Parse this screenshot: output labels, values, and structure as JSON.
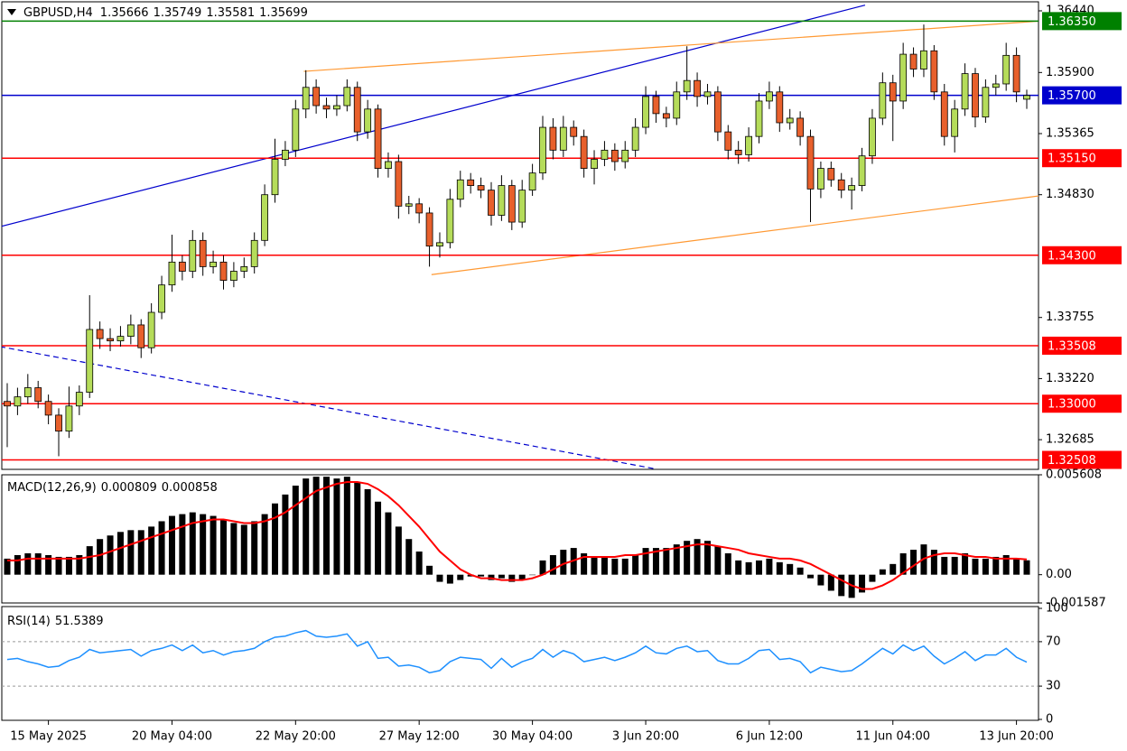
{
  "chart_data": [
    {
      "type": "candlestick",
      "title": "GBPUSD,H4",
      "up_color": "#b5dc5a",
      "down_color": "#e8602c",
      "ylim": [
        1.32425,
        1.36519
      ],
      "yticks": [
        {
          "value": 1.3644,
          "label": "1.36440"
        },
        {
          "value": 1.359,
          "label": "1.35900"
        },
        1.35365,
        {
          "value": 1.3483,
          "label": "1.34830"
        },
        1.33755,
        {
          "value": 1.3322,
          "label": "1.33220"
        },
        1.32685
      ],
      "price_levels": [
        {
          "value": 1.3635,
          "label": "1.36350",
          "color": "#008000"
        },
        {
          "value": 1.357,
          "label": "1.35700",
          "color": "#0000cd"
        },
        {
          "value": 1.3515,
          "label": "1.35150",
          "color": "#ff0000"
        },
        {
          "value": 1.343,
          "label": "1.34300",
          "color": "#ff0000"
        },
        {
          "value": 1.33508,
          "label": "1.33508",
          "color": "#ff0000"
        },
        {
          "value": 1.33,
          "label": "1.33000",
          "color": "#ff0000"
        },
        {
          "value": 1.32508,
          "label": "1.32508",
          "color": "#ff0000"
        }
      ],
      "trendlines": [
        {
          "color": "#0000cd",
          "dashed": false,
          "points": [
            [
              -0.7,
              1.3455
            ],
            [
              83.3,
              1.3649
            ]
          ]
        },
        {
          "color": "#ff9933",
          "dashed": false,
          "points": [
            [
              28.8,
              1.3591
            ],
            [
              100.2,
              1.3635
            ]
          ]
        },
        {
          "color": "#ff9933",
          "dashed": false,
          "points": [
            [
              41.2,
              1.3413
            ],
            [
              100.2,
              1.3482
            ]
          ]
        },
        {
          "color": "#0000cd",
          "dashed": true,
          "points": [
            [
              -0.7,
              1.335
            ],
            [
              62.9,
              1.3243
            ]
          ]
        }
      ],
      "categories": [
        null,
        null,
        null,
        null,
        "15 May 2025",
        null,
        null,
        null,
        null,
        null,
        null,
        null,
        null,
        null,
        null,
        null,
        "20 May 04:00",
        null,
        null,
        null,
        null,
        null,
        null,
        null,
        null,
        null,
        null,
        null,
        "22 May 20:00",
        null,
        null,
        null,
        null,
        null,
        null,
        null,
        null,
        null,
        null,
        null,
        "27 May 12:00",
        null,
        null,
        null,
        null,
        null,
        null,
        null,
        null,
        null,
        null,
        "30 May 04:00",
        null,
        null,
        null,
        null,
        null,
        null,
        null,
        null,
        null,
        null,
        "3 Jun 20:00",
        null,
        null,
        null,
        null,
        null,
        null,
        null,
        null,
        null,
        null,
        null,
        "6 Jun 12:00",
        null,
        null,
        null,
        null,
        null,
        null,
        null,
        null,
        null,
        null,
        null,
        "11 Jun 04:00",
        null,
        null,
        null,
        null,
        null,
        null,
        null,
        null,
        null,
        null,
        null,
        "13 Jun 20:00",
        null
      ],
      "candles": [
        [
          1.3302,
          1.3318,
          1.3262,
          1.3298
        ],
        [
          1.3298,
          1.3314,
          1.329,
          1.3306
        ],
        [
          1.3306,
          1.3326,
          1.33,
          1.3314
        ],
        [
          1.3314,
          1.332,
          1.3296,
          1.3302
        ],
        [
          1.3302,
          1.3308,
          1.3282,
          1.329
        ],
        [
          1.329,
          1.3296,
          1.3254,
          1.3276
        ],
        [
          1.3276,
          1.3315,
          1.327,
          1.3298
        ],
        [
          1.3298,
          1.3316,
          1.329,
          1.331
        ],
        [
          1.331,
          1.3395,
          1.3305,
          1.3365
        ],
        [
          1.3365,
          1.3372,
          1.3348,
          1.3357
        ],
        [
          1.3357,
          1.3366,
          1.3346,
          1.3355
        ],
        [
          1.3355,
          1.3368,
          1.335,
          1.3359
        ],
        [
          1.3359,
          1.3378,
          1.3352,
          1.3369
        ],
        [
          1.3369,
          1.3374,
          1.334,
          1.3349
        ],
        [
          1.3349,
          1.3388,
          1.3344,
          1.338
        ],
        [
          1.338,
          1.3412,
          1.3374,
          1.3404
        ],
        [
          1.3404,
          1.3448,
          1.3398,
          1.3424
        ],
        [
          1.3424,
          1.343,
          1.3408,
          1.3416
        ],
        [
          1.3416,
          1.3452,
          1.341,
          1.3443
        ],
        [
          1.3443,
          1.345,
          1.3412,
          1.342
        ],
        [
          1.342,
          1.3434,
          1.3414,
          1.3424
        ],
        [
          1.3424,
          1.343,
          1.34,
          1.3408
        ],
        [
          1.3408,
          1.3424,
          1.3402,
          1.3416
        ],
        [
          1.3416,
          1.3428,
          1.341,
          1.342
        ],
        [
          1.342,
          1.345,
          1.3414,
          1.3443
        ],
        [
          1.3443,
          1.3492,
          1.3438,
          1.3483
        ],
        [
          1.3483,
          1.3532,
          1.3476,
          1.3514
        ],
        [
          1.3514,
          1.353,
          1.3508,
          1.3522
        ],
        [
          1.3522,
          1.3566,
          1.3516,
          1.3558
        ],
        [
          1.3558,
          1.3592,
          1.355,
          1.3577
        ],
        [
          1.3577,
          1.3584,
          1.3554,
          1.3561
        ],
        [
          1.3561,
          1.3568,
          1.355,
          1.3558
        ],
        [
          1.3558,
          1.357,
          1.3552,
          1.3561
        ],
        [
          1.3561,
          1.3584,
          1.3556,
          1.3577
        ],
        [
          1.3577,
          1.3582,
          1.353,
          1.3538
        ],
        [
          1.3538,
          1.3566,
          1.3532,
          1.3558
        ],
        [
          1.3558,
          1.3562,
          1.3498,
          1.3506
        ],
        [
          1.3506,
          1.352,
          1.3498,
          1.3512
        ],
        [
          1.3512,
          1.3518,
          1.3462,
          1.3473
        ],
        [
          1.3473,
          1.3482,
          1.3466,
          1.3475
        ],
        [
          1.3475,
          1.348,
          1.3458,
          1.3467
        ],
        [
          1.3467,
          1.3472,
          1.342,
          1.3438
        ],
        [
          1.3438,
          1.345,
          1.3428,
          1.3441
        ],
        [
          1.3441,
          1.3488,
          1.3436,
          1.3479
        ],
        [
          1.3479,
          1.3504,
          1.3472,
          1.3496
        ],
        [
          1.3496,
          1.3502,
          1.3484,
          1.3491
        ],
        [
          1.3491,
          1.3498,
          1.348,
          1.3487
        ],
        [
          1.3487,
          1.3494,
          1.3456,
          1.3465
        ],
        [
          1.3465,
          1.35,
          1.346,
          1.3491
        ],
        [
          1.3491,
          1.3496,
          1.3452,
          1.3459
        ],
        [
          1.3459,
          1.3496,
          1.3454,
          1.3487
        ],
        [
          1.3487,
          1.351,
          1.3482,
          1.3502
        ],
        [
          1.3502,
          1.3552,
          1.3496,
          1.3542
        ],
        [
          1.3542,
          1.355,
          1.3514,
          1.3522
        ],
        [
          1.3522,
          1.3552,
          1.3516,
          1.3542
        ],
        [
          1.3542,
          1.3548,
          1.3526,
          1.3534
        ],
        [
          1.3534,
          1.354,
          1.3498,
          1.3506
        ],
        [
          1.3506,
          1.3522,
          1.3492,
          1.3514
        ],
        [
          1.3514,
          1.353,
          1.3508,
          1.3522
        ],
        [
          1.3522,
          1.3528,
          1.3504,
          1.3512
        ],
        [
          1.3512,
          1.353,
          1.3506,
          1.3522
        ],
        [
          1.3522,
          1.355,
          1.3516,
          1.3542
        ],
        [
          1.3542,
          1.3578,
          1.3536,
          1.3569
        ],
        [
          1.3569,
          1.3574,
          1.3546,
          1.3554
        ],
        [
          1.3554,
          1.356,
          1.3542,
          1.355
        ],
        [
          1.355,
          1.3582,
          1.3544,
          1.3573
        ],
        [
          1.3573,
          1.3613,
          1.3566,
          1.3583
        ],
        [
          1.3583,
          1.359,
          1.356,
          1.3569
        ],
        [
          1.3569,
          1.358,
          1.3562,
          1.3573
        ],
        [
          1.3573,
          1.3578,
          1.353,
          1.3538
        ],
        [
          1.3538,
          1.3544,
          1.3514,
          1.3522
        ],
        [
          1.3522,
          1.353,
          1.351,
          1.3518
        ],
        [
          1.3518,
          1.3542,
          1.3512,
          1.3534
        ],
        [
          1.3534,
          1.3572,
          1.3528,
          1.3565
        ],
        [
          1.3565,
          1.3582,
          1.3558,
          1.3573
        ],
        [
          1.3573,
          1.3578,
          1.3538,
          1.3546
        ],
        [
          1.3546,
          1.3558,
          1.354,
          1.355
        ],
        [
          1.355,
          1.3556,
          1.3526,
          1.3534
        ],
        [
          1.3534,
          1.354,
          1.3459,
          1.3488
        ],
        [
          1.3488,
          1.3512,
          1.348,
          1.3506
        ],
        [
          1.3506,
          1.3512,
          1.349,
          1.3496
        ],
        [
          1.3496,
          1.3502,
          1.348,
          1.3487
        ],
        [
          1.3487,
          1.3498,
          1.347,
          1.3491
        ],
        [
          1.3491,
          1.3524,
          1.3486,
          1.3517
        ],
        [
          1.3517,
          1.3558,
          1.351,
          1.355
        ],
        [
          1.355,
          1.359,
          1.3544,
          1.3581
        ],
        [
          1.3581,
          1.3588,
          1.353,
          1.3565
        ],
        [
          1.3565,
          1.3616,
          1.3558,
          1.3606
        ],
        [
          1.3606,
          1.3612,
          1.3586,
          1.3593
        ],
        [
          1.3593,
          1.3632,
          1.3586,
          1.3609
        ],
        [
          1.3609,
          1.3614,
          1.3566,
          1.3573
        ],
        [
          1.3573,
          1.358,
          1.3526,
          1.3534
        ],
        [
          1.3534,
          1.3566,
          1.352,
          1.3558
        ],
        [
          1.3558,
          1.3598,
          1.3552,
          1.3589
        ],
        [
          1.3589,
          1.3594,
          1.3542,
          1.3551
        ],
        [
          1.3551,
          1.3584,
          1.3546,
          1.3577
        ],
        [
          1.3577,
          1.3588,
          1.357,
          1.358
        ],
        [
          1.358,
          1.3616,
          1.3574,
          1.3605
        ],
        [
          1.3605,
          1.3612,
          1.3564,
          1.3573
        ],
        [
          1.35666,
          1.35749,
          1.35581,
          1.35699
        ]
      ]
    },
    {
      "type": "macd",
      "title": "MACD(12,26,9)",
      "ylim": [
        -0.001587,
        0.005608
      ],
      "yticks": [
        0.005608,
        {
          "value": 0,
          "label": "0.00"
        },
        -0.001587
      ],
      "series": [
        {
          "kind": "bar",
          "color": "#000000",
          "values": [
            0.0009,
            0.0011,
            0.0012,
            0.0012,
            0.0011,
            0.001,
            0.001,
            0.0011,
            0.0016,
            0.002,
            0.0022,
            0.0024,
            0.0025,
            0.0025,
            0.0027,
            0.003,
            0.0033,
            0.0034,
            0.0035,
            0.0034,
            0.0033,
            0.0031,
            0.0029,
            0.0028,
            0.003,
            0.0034,
            0.004,
            0.0045,
            0.005,
            0.0054,
            0.0055,
            0.0055,
            0.0054,
            0.0055,
            0.0052,
            0.0048,
            0.0041,
            0.0035,
            0.0027,
            0.002,
            0.0013,
            0.0005,
            -0.0004,
            -0.0005,
            -0.0003,
            -0.0001,
            -0.0001,
            -0.0003,
            -0.0002,
            -0.0004,
            -0.0003,
            0,
            0.0008,
            0.0011,
            0.0014,
            0.0015,
            0.0012,
            0.001,
            0.001,
            0.0009,
            0.0009,
            0.0011,
            0.0015,
            0.0015,
            0.0015,
            0.0017,
            0.0019,
            0.002,
            0.0019,
            0.0016,
            0.0012,
            0.0008,
            0.0007,
            0.0008,
            0.0009,
            0.0007,
            0.0006,
            0.0004,
            -0.0002,
            -0.0006,
            -0.0009,
            -0.0012,
            -0.0013,
            -0.001,
            -0.0004,
            0.0003,
            0.0006,
            0.0012,
            0.0014,
            0.0017,
            0.0014,
            0.001,
            0.001,
            0.0012,
            0.0009,
            0.0009,
            0.001,
            0.0011,
            0.0009,
            0.000809
          ]
        },
        {
          "kind": "line",
          "color": "#ff0000",
          "values": [
            0.0008,
            0.0008,
            0.0009,
            0.0009,
            0.0009,
            0.0009,
            0.0009,
            0.0009,
            0.001,
            0.0011,
            0.0013,
            0.0015,
            0.0017,
            0.0019,
            0.0021,
            0.0023,
            0.0025,
            0.0027,
            0.0029,
            0.003,
            0.0031,
            0.0031,
            0.003,
            0.0029,
            0.0029,
            0.003,
            0.0032,
            0.0035,
            0.0039,
            0.0043,
            0.0047,
            0.0049,
            0.0051,
            0.0052,
            0.0052,
            0.0051,
            0.0048,
            0.0044,
            0.0039,
            0.0033,
            0.0027,
            0.002,
            0.0013,
            0.0008,
            0.0003,
            0,
            -0.0002,
            -0.0002,
            -0.0003,
            -0.0003,
            -0.0003,
            -0.0002,
            0,
            0.0003,
            0.0006,
            0.0008,
            0.001,
            0.001,
            0.001,
            0.001,
            0.0011,
            0.0011,
            0.0012,
            0.0013,
            0.0014,
            0.0015,
            0.0016,
            0.0017,
            0.0017,
            0.0016,
            0.0015,
            0.0014,
            0.0012,
            0.0011,
            0.001,
            0.0009,
            0.0009,
            0.0008,
            0.0006,
            0.0003,
            0,
            -0.0003,
            -0.0006,
            -0.0008,
            -0.0008,
            -0.0006,
            -0.0003,
            0.0001,
            0.0005,
            0.0009,
            0.0011,
            0.0012,
            0.0012,
            0.0011,
            0.001,
            0.001,
            0.0009,
            0.0009,
            0.0009,
            0.000858
          ]
        }
      ]
    },
    {
      "type": "rsi",
      "title": "RSI(14)",
      "color": "#1e90ff",
      "ylim": [
        0,
        100
      ],
      "yticks": [
        100,
        70,
        30,
        0
      ],
      "values": [
        54,
        55,
        52,
        50,
        47,
        48,
        53,
        56,
        63,
        60,
        61,
        62,
        63,
        57,
        62,
        64,
        67,
        62,
        67,
        60,
        62,
        58,
        61,
        62,
        64,
        70,
        74,
        75,
        78,
        80,
        75,
        74,
        75,
        77,
        66,
        70,
        55,
        56,
        48,
        49,
        47,
        42,
        44,
        52,
        56,
        55,
        54,
        46,
        55,
        47,
        52,
        55,
        63,
        56,
        62,
        59,
        52,
        54,
        56,
        53,
        56,
        60,
        66,
        60,
        59,
        64,
        66,
        61,
        62,
        53,
        50,
        50,
        55,
        62,
        63,
        54,
        55,
        52,
        42,
        47,
        45,
        43,
        44,
        50,
        57,
        64,
        59,
        67,
        62,
        66,
        57,
        50,
        55,
        61,
        53,
        58,
        58,
        64,
        56,
        51.5389
      ]
    }
  ]
}
